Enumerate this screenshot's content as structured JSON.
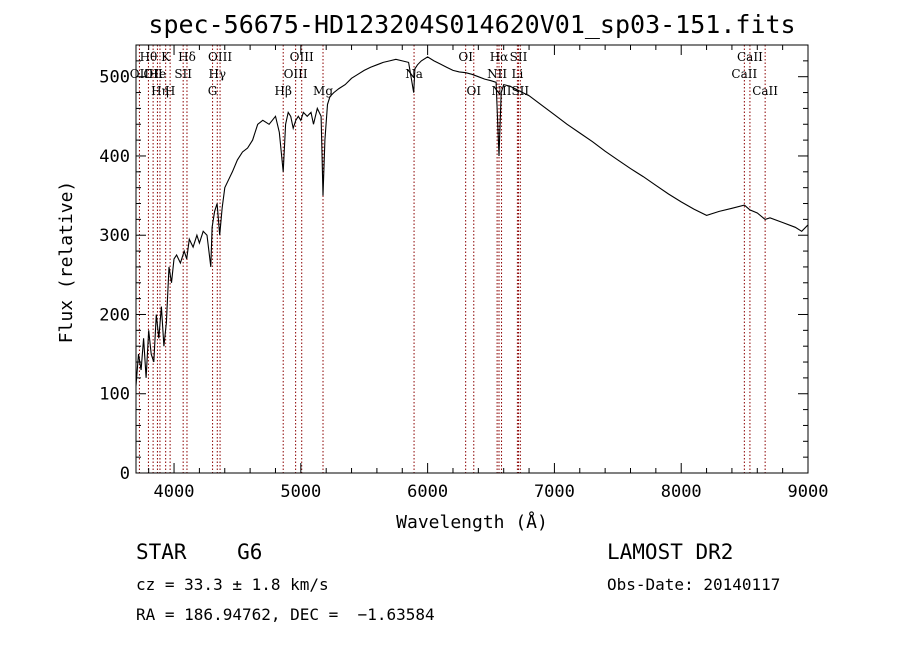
{
  "chart_data": {
    "type": "line",
    "title": "spec-56675-HD123204S014620V01_sp03-151.fits",
    "xlabel": "Wavelength (Å)",
    "ylabel": "Flux (relative)",
    "xlim": [
      3700,
      9000
    ],
    "ylim": [
      0,
      540
    ],
    "xticks": [
      4000,
      5000,
      6000,
      7000,
      8000,
      9000
    ],
    "yticks": [
      0,
      100,
      200,
      300,
      400,
      500
    ],
    "grid": false,
    "line_color": "#000000",
    "marker_color": "#8b0000",
    "series": [
      {
        "x": [
          3700,
          3720,
          3740,
          3760,
          3780,
          3800,
          3820,
          3840,
          3860,
          3880,
          3900,
          3920,
          3940,
          3960,
          3980,
          4000,
          4020,
          4050,
          4080,
          4100,
          4120,
          4150,
          4180,
          4200,
          4230,
          4260,
          4290,
          4300,
          4320,
          4340,
          4360,
          4380,
          4400,
          4430,
          4460,
          4500,
          4540,
          4580,
          4620,
          4660,
          4700,
          4750,
          4800,
          4830,
          4861,
          4880,
          4900,
          4920,
          4940,
          4960,
          4980,
          5000,
          5020,
          5050,
          5080,
          5100,
          5130,
          5160,
          5175,
          5190,
          5210,
          5230,
          5260,
          5300,
          5350,
          5400,
          5450,
          5500,
          5550,
          5600,
          5650,
          5700,
          5750,
          5800,
          5850,
          5890,
          5900,
          5920,
          5950,
          6000,
          6050,
          6100,
          6150,
          6200,
          6250,
          6300,
          6350,
          6400,
          6450,
          6500,
          6540,
          6563,
          6580,
          6600,
          6650,
          6700,
          6750,
          6800,
          6900,
          7000,
          7100,
          7200,
          7300,
          7400,
          7500,
          7600,
          7700,
          7800,
          7900,
          8000,
          8100,
          8200,
          8300,
          8400,
          8498,
          8542,
          8600,
          8662,
          8700,
          8800,
          8900,
          8950,
          9000
        ],
        "y": [
          110,
          150,
          130,
          170,
          120,
          180,
          150,
          140,
          200,
          170,
          210,
          160,
          190,
          260,
          240,
          270,
          275,
          265,
          280,
          270,
          295,
          285,
          300,
          290,
          305,
          300,
          260,
          310,
          330,
          340,
          300,
          335,
          360,
          370,
          380,
          395,
          405,
          410,
          420,
          440,
          445,
          440,
          450,
          430,
          380,
          440,
          455,
          450,
          435,
          445,
          450,
          445,
          455,
          450,
          455,
          440,
          460,
          450,
          350,
          420,
          465,
          475,
          480,
          485,
          490,
          498,
          503,
          508,
          512,
          515,
          518,
          520,
          522,
          520,
          518,
          480,
          510,
          515,
          520,
          525,
          520,
          516,
          512,
          508,
          506,
          505,
          503,
          500,
          497,
          495,
          493,
          400,
          480,
          490,
          488,
          484,
          480,
          476,
          464,
          452,
          440,
          429,
          418,
          406,
          395,
          384,
          374,
          363,
          352,
          342,
          333,
          325,
          330,
          334,
          338,
          332,
          328,
          320,
          322,
          316,
          310,
          305,
          313
        ]
      }
    ],
    "line_markers": [
      {
        "w": 3727,
        "row": 1,
        "label": "OII"
      },
      {
        "w": 3798,
        "row": 0,
        "label": "Hθ"
      },
      {
        "w": 3835,
        "row": 1,
        "label": "OII"
      },
      {
        "w": 3869,
        "row": 1,
        "label": "He"
      },
      {
        "w": 3889,
        "row": 2,
        "label": "Hη"
      },
      {
        "w": 3934,
        "row": 0,
        "label": "K"
      },
      {
        "w": 3969,
        "row": 2,
        "label": "H"
      },
      {
        "w": 4072,
        "row": 1,
        "label": "SII"
      },
      {
        "w": 4102,
        "row": 0,
        "label": "Hδ"
      },
      {
        "w": 4304,
        "row": 2,
        "label": "G"
      },
      {
        "w": 4341,
        "row": 1,
        "label": "Hγ"
      },
      {
        "w": 4363,
        "row": 0,
        "label": "OIII"
      },
      {
        "w": 4861,
        "row": 2,
        "label": "Hβ"
      },
      {
        "w": 4959,
        "row": 1,
        "label": "OIII"
      },
      {
        "w": 5007,
        "row": 0,
        "label": "OIII"
      },
      {
        "w": 5175,
        "row": 2,
        "label": "Mg"
      },
      {
        "w": 5893,
        "row": 1,
        "label": "Na"
      },
      {
        "w": 6300,
        "row": 0,
        "label": "OI"
      },
      {
        "w": 6364,
        "row": 2,
        "label": "OI"
      },
      {
        "w": 6548,
        "row": 1,
        "label": "NII"
      },
      {
        "w": 6563,
        "row": 0,
        "label": "Hα"
      },
      {
        "w": 6583,
        "row": 2,
        "label": "NII"
      },
      {
        "w": 6708,
        "row": 1,
        "label": "Li"
      },
      {
        "w": 6717,
        "row": 0,
        "label": "SII"
      },
      {
        "w": 6731,
        "row": 2,
        "label": "SII"
      },
      {
        "w": 8498,
        "row": 1,
        "label": "CaII"
      },
      {
        "w": 8542,
        "row": 0,
        "label": "CaII"
      },
      {
        "w": 8662,
        "row": 2,
        "label": "CaII"
      }
    ]
  },
  "info": {
    "class_line": "STAR    G6",
    "cz_line": "cz = 33.3 ± 1.8 km/s",
    "radec_line": "RA = 186.94762, DEC =  −1.63584",
    "survey": "LAMOST DR2",
    "obs_date": "Obs-Date: 20140117"
  }
}
